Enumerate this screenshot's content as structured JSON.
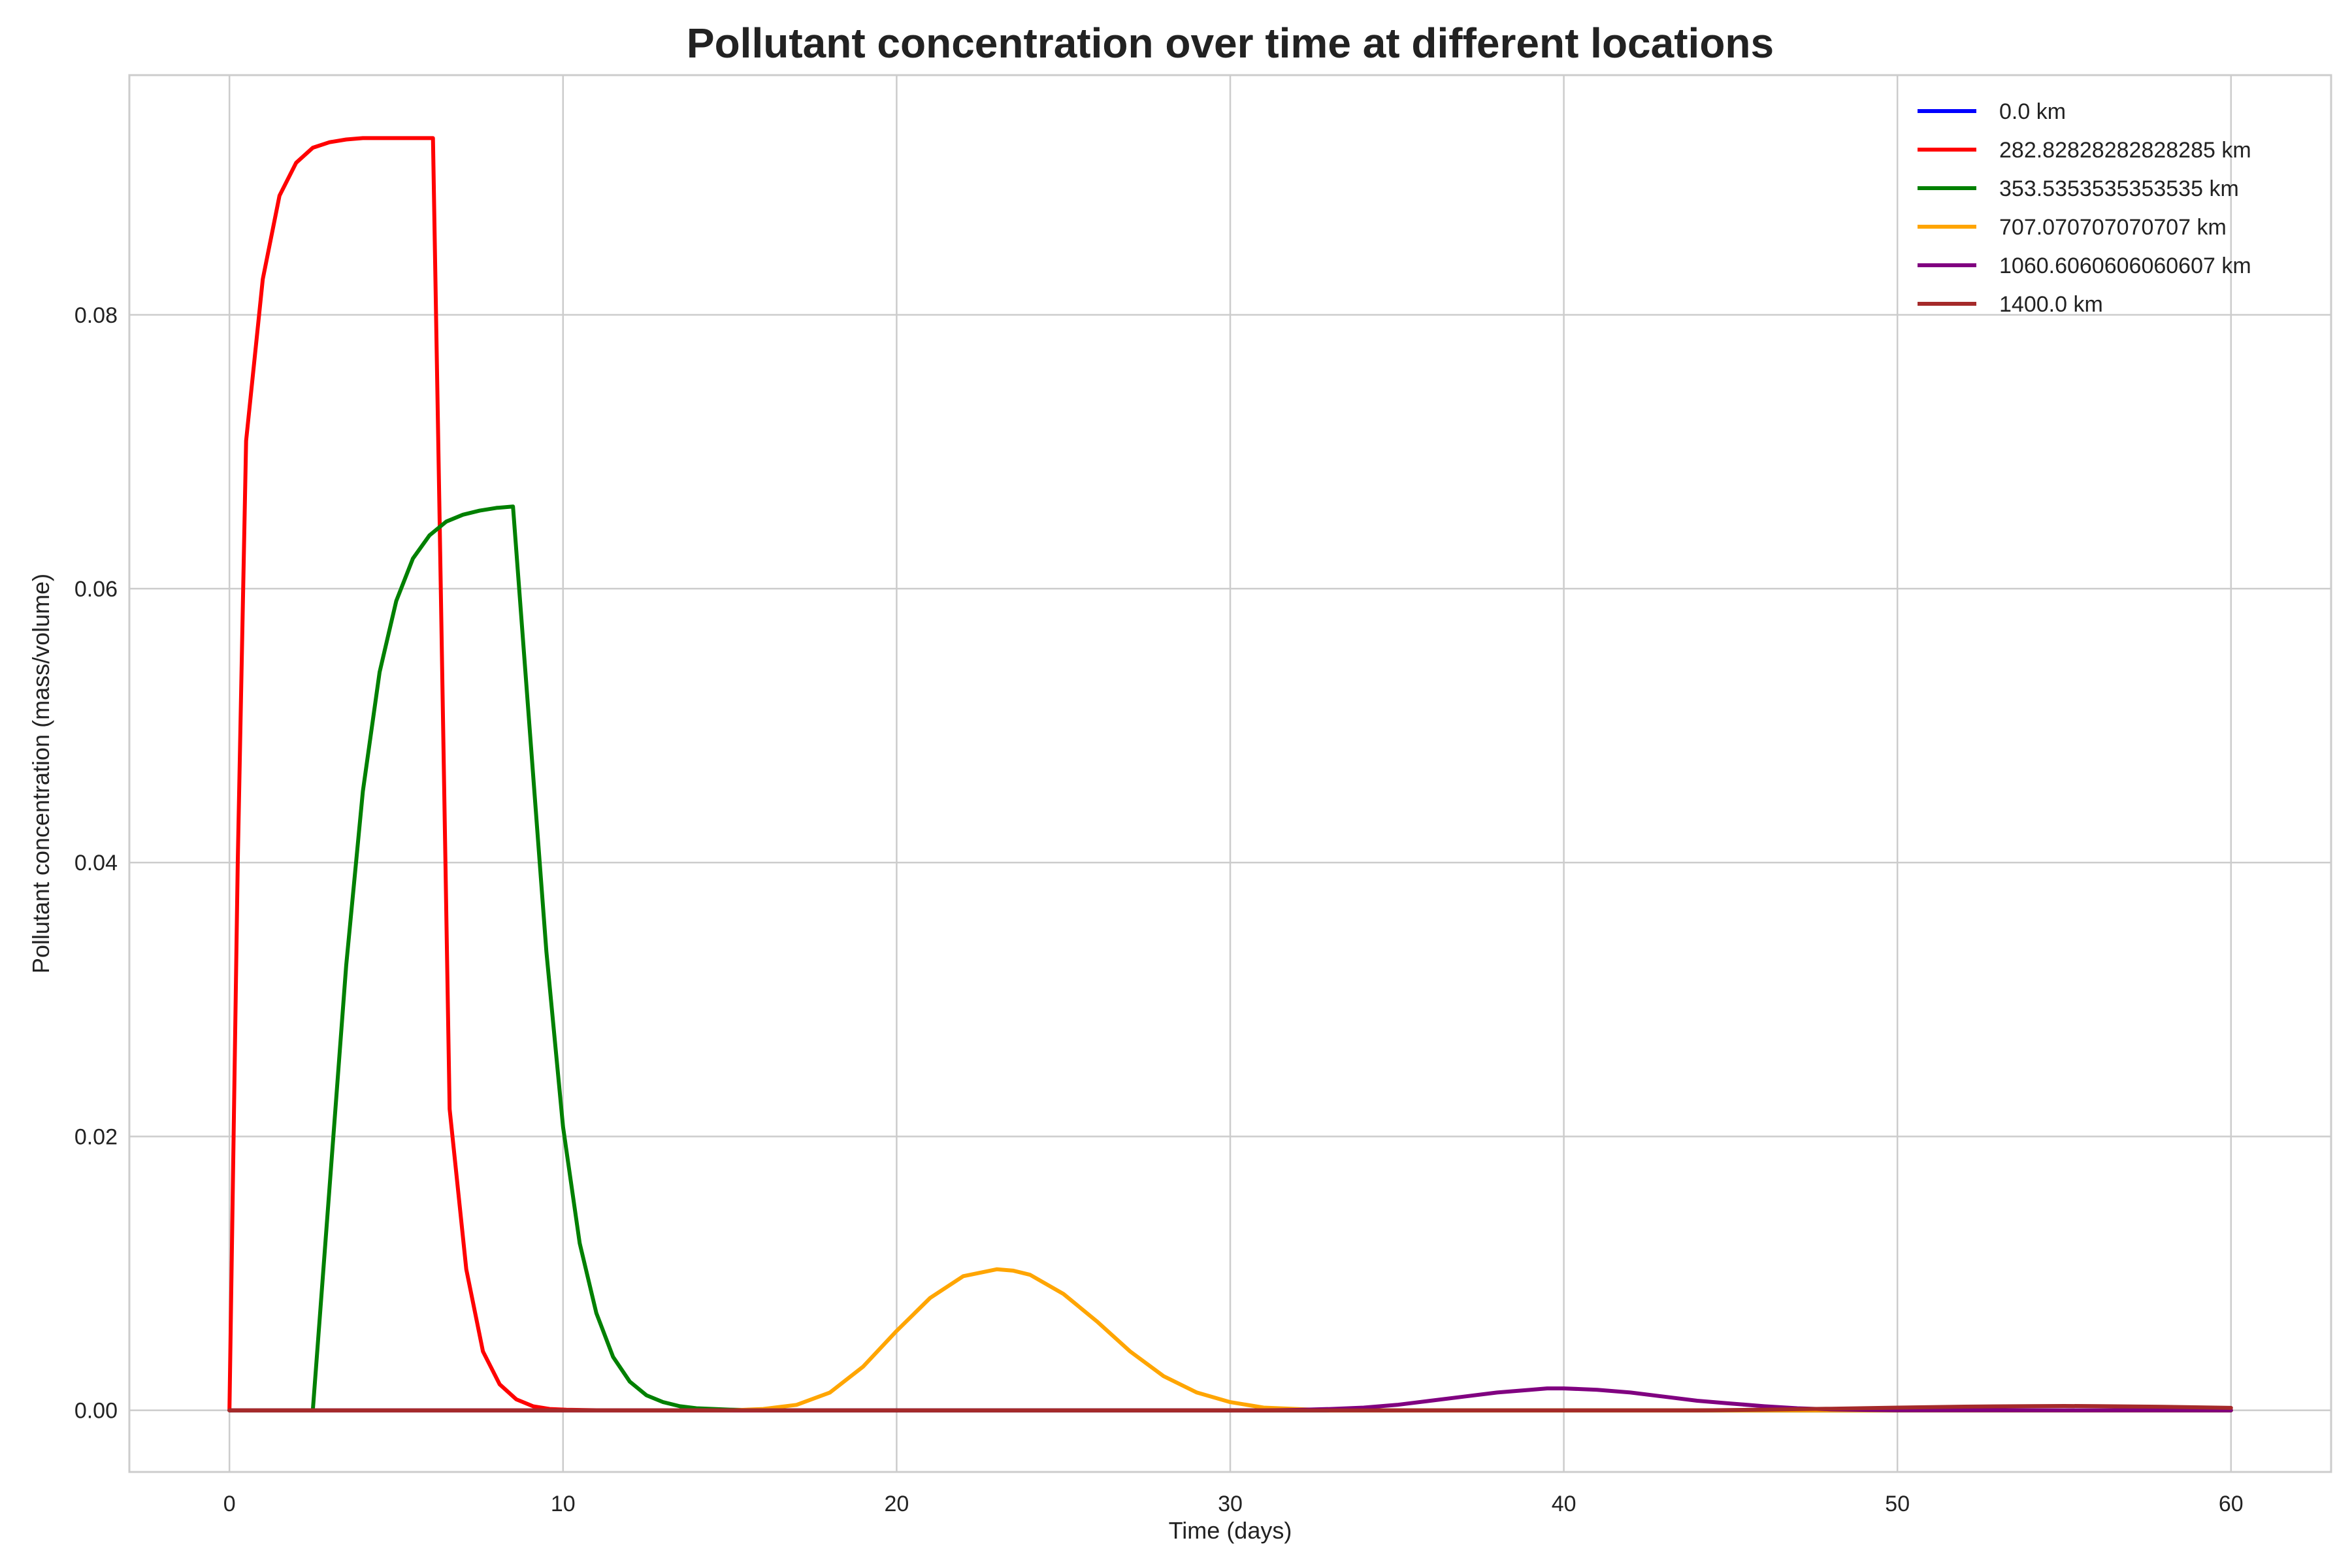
{
  "chart_data": {
    "type": "line",
    "title": "Pollutant concentration over time at different locations",
    "xlabel": "Time (days)",
    "ylabel": "Pollutant concentration (mass/volume)",
    "xlim": [
      -3,
      63
    ],
    "ylim": [
      -0.0045,
      0.0975
    ],
    "xticks": [
      0,
      10,
      20,
      30,
      40,
      50,
      60
    ],
    "yticks": [
      0.0,
      0.02,
      0.04,
      0.06,
      0.08
    ],
    "ytick_labels": [
      "0.00",
      "0.02",
      "0.04",
      "0.06",
      "0.08"
    ],
    "grid": true,
    "legend_position": "top-right",
    "series": [
      {
        "name": "0.0 km",
        "color": "#0000ff",
        "x": [
          0,
          60
        ],
        "y": [
          0,
          0
        ]
      },
      {
        "name": "282.82828282828285 km",
        "color": "#ff0000",
        "x": [
          0,
          0.25,
          0.5,
          1,
          1.5,
          2,
          2.5,
          3,
          3.5,
          4,
          5,
          6.1,
          6.3,
          6.6,
          7.1,
          7.6,
          8.1,
          8.6,
          9.1,
          9.6,
          10.1,
          11,
          12,
          60
        ],
        "y": [
          0,
          0.04,
          0.0708,
          0.0826,
          0.0887,
          0.0911,
          0.0922,
          0.0926,
          0.0928,
          0.0929,
          0.0929,
          0.0929,
          0.065,
          0.022,
          0.0103,
          0.0043,
          0.0019,
          0.0008,
          0.0003,
          0.0001,
          4e-05,
          1e-05,
          0,
          0
        ]
      },
      {
        "name": "353.5353535353535 km",
        "color": "#008000",
        "x": [
          0,
          2.5,
          3.5,
          4,
          4.5,
          5,
          5.5,
          6,
          6.5,
          7,
          7.5,
          8,
          8.5,
          9.5,
          10,
          10.5,
          11,
          11.5,
          12,
          12.5,
          13,
          13.5,
          14,
          15,
          16,
          60
        ],
        "y": [
          0,
          0,
          0.0325,
          0.0452,
          0.0539,
          0.0591,
          0.0622,
          0.0639,
          0.0649,
          0.0654,
          0.0657,
          0.0659,
          0.066,
          0.0335,
          0.0207,
          0.0122,
          0.0071,
          0.0039,
          0.0021,
          0.0011,
          0.0006,
          0.0003,
          0.00015,
          5e-05,
          0,
          0
        ]
      },
      {
        "name": "707.070707070707 km",
        "color": "#ffa500",
        "x": [
          0,
          15,
          16,
          17,
          18,
          19,
          20,
          21,
          22,
          23,
          23.5,
          24,
          25,
          26,
          27,
          28,
          29,
          30,
          31,
          32,
          33,
          60
        ],
        "y": [
          0,
          0,
          0.0001,
          0.0004,
          0.0013,
          0.0032,
          0.0058,
          0.0082,
          0.0098,
          0.0103,
          0.0102,
          0.0099,
          0.0085,
          0.0065,
          0.0043,
          0.0025,
          0.0013,
          0.0006,
          0.0002,
          0.0001,
          0,
          0
        ]
      },
      {
        "name": "1060.6060606060607 km",
        "color": "#800080",
        "x": [
          0,
          31,
          32,
          33,
          34,
          35,
          36,
          37,
          38,
          39,
          39.5,
          40,
          41,
          42,
          43,
          44,
          45,
          46,
          47,
          48,
          49,
          50,
          60
        ],
        "y": [
          0,
          0,
          3e-05,
          0.0001,
          0.0002,
          0.0004,
          0.0007,
          0.001,
          0.0013,
          0.0015,
          0.0016,
          0.0016,
          0.0015,
          0.0013,
          0.001,
          0.0007,
          0.0005,
          0.0003,
          0.00015,
          7e-05,
          3e-05,
          1e-05,
          0
        ]
      },
      {
        "name": "1400.0 km",
        "color": "#a52a2a",
        "x": [
          0,
          44,
          46,
          48,
          50,
          52,
          54,
          55,
          56,
          58,
          60
        ],
        "y": [
          0,
          0,
          5e-05,
          0.00012,
          0.0002,
          0.00027,
          0.00031,
          0.00032,
          0.00031,
          0.00026,
          0.00018
        ]
      }
    ]
  }
}
